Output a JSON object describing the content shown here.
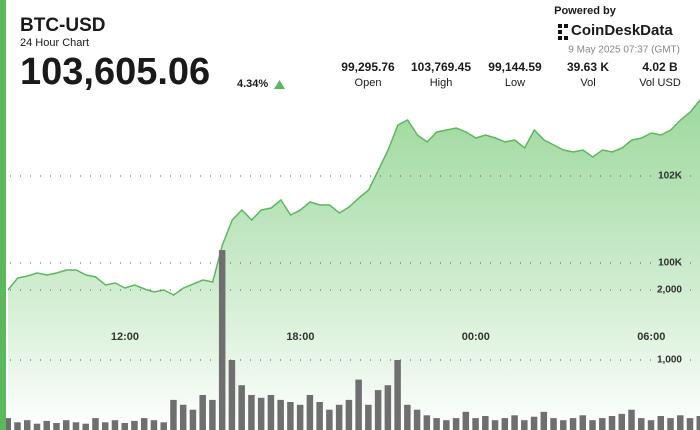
{
  "header": {
    "symbol": "BTC-USD",
    "subtitle": "24 Hour Chart",
    "price": "103,605.06",
    "change": "4.34%",
    "stats": [
      {
        "value": "99,295.76",
        "label": "Open"
      },
      {
        "value": "103,769.45",
        "label": "High"
      },
      {
        "value": "99,144.59",
        "label": "Low"
      },
      {
        "value": "39.63 K",
        "label": "Vol"
      },
      {
        "value": "4.02 B",
        "label": "Vol USD"
      }
    ],
    "powered_by": "Powered by",
    "brand": "CoinDeskData",
    "timestamp": "9 May 2025 07:37 (GMT)"
  },
  "chart_data": {
    "type": "area",
    "categories": [
      null,
      null,
      null,
      null,
      null,
      null,
      null,
      null,
      null,
      null,
      null,
      null,
      "12:00",
      null,
      null,
      null,
      null,
      null,
      null,
      null,
      null,
      null,
      null,
      null,
      null,
      null,
      null,
      null,
      null,
      null,
      "18:00",
      null,
      null,
      null,
      null,
      null,
      null,
      null,
      null,
      null,
      null,
      null,
      null,
      null,
      null,
      null,
      null,
      null,
      "00:00",
      null,
      null,
      null,
      null,
      null,
      null,
      null,
      null,
      null,
      null,
      null,
      null,
      null,
      null,
      null,
      null,
      null,
      "06:00",
      null,
      null,
      null,
      null,
      null
    ],
    "series": [
      {
        "color": "#5cb85c",
        "values": [
          99379,
          99655,
          99701,
          99770,
          99724,
          99770,
          99839,
          99839,
          99724,
          99678,
          99494,
          99540,
          99425,
          99494,
          99402,
          99333,
          99379,
          99264,
          99425,
          99517,
          99609,
          99563,
          100414,
          100989,
          101219,
          100989,
          101219,
          101265,
          101448,
          101104,
          101219,
          101402,
          101333,
          101333,
          101149,
          101287,
          101494,
          101678,
          102138,
          102598,
          103172,
          103287,
          102943,
          102782,
          103011,
          103057,
          103103,
          103011,
          102874,
          102943,
          102874,
          102782,
          102828,
          102644,
          103057,
          102828,
          102713,
          102598,
          102552,
          102598,
          102437,
          102598,
          102552,
          102644,
          102828,
          102874,
          102989,
          102943,
          103057,
          103287,
          103471,
          103747
        ]
      },
      {
        "type": "bar",
        "axis": "y2",
        "color": "#6f6f6f",
        "values": [
          170,
          110,
          140,
          90,
          130,
          100,
          140,
          110,
          90,
          170,
          110,
          140,
          100,
          130,
          170,
          140,
          110,
          430,
          360,
          290,
          500,
          430,
          2570,
          1000,
          640,
          500,
          460,
          500,
          430,
          400,
          360,
          500,
          400,
          290,
          360,
          430,
          720,
          360,
          570,
          640,
          1000,
          360,
          290,
          210,
          170,
          140,
          170,
          260,
          170,
          200,
          140,
          170,
          210,
          140,
          190,
          260,
          170,
          140,
          170,
          210,
          140,
          170,
          200,
          230,
          290,
          170,
          140,
          200,
          170,
          210,
          170,
          200
        ]
      }
    ],
    "ylim": [
      96161,
      103977
    ],
    "yticks": [
      {
        "value": 100000,
        "label": "100K"
      },
      {
        "value": 102000,
        "label": "102K"
      }
    ],
    "y2lim": [
      0,
      4857
    ],
    "y2ticks": [
      {
        "value": 1000,
        "label": "1,000"
      },
      {
        "value": 2000,
        "label": "2,000"
      }
    ],
    "grid": true
  }
}
